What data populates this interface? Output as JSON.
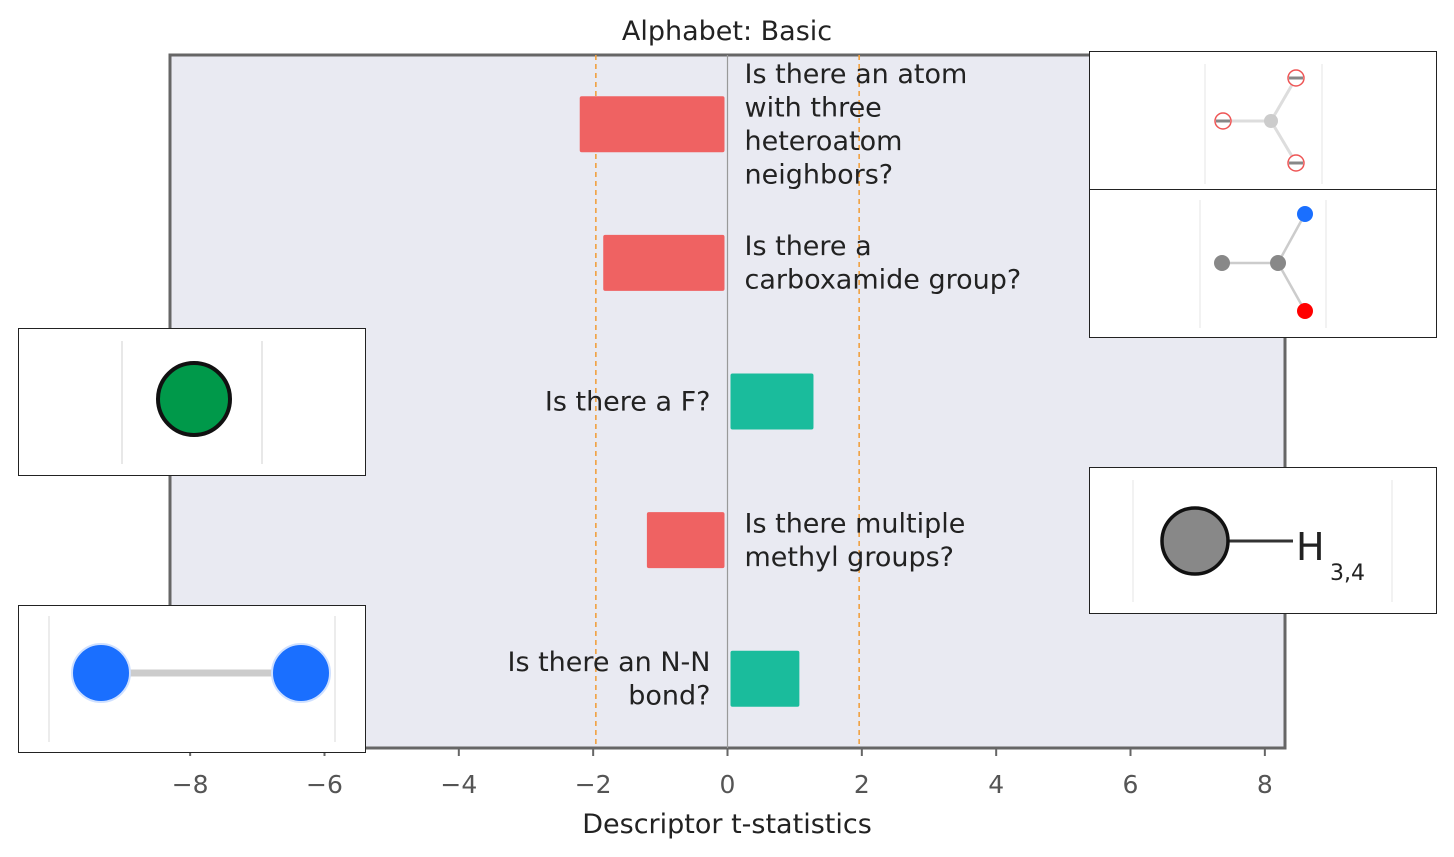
{
  "chart_data": {
    "type": "bar",
    "orientation": "horizontal",
    "title": "Alphabet: Basic",
    "xlabel": "Descriptor t-statistics",
    "ylabel": "",
    "xlim": [
      -8.3,
      8.3
    ],
    "xticks": [
      -8,
      -6,
      -4,
      -2,
      0,
      2,
      4,
      6,
      8
    ],
    "xtick_labels": [
      "−8",
      "−6",
      "−4",
      "−2",
      "0",
      "2",
      "4",
      "6",
      "8"
    ],
    "threshold_lines": [
      -1.96,
      1.96
    ],
    "grid": false,
    "bars": [
      {
        "label_lines": [
          "Is there an atom",
          "with three",
          "heteroatom",
          "neighbors?"
        ],
        "value": -2.2,
        "color": "#ef6262"
      },
      {
        "label_lines": [
          "Is there a",
          "carboxamide group?"
        ],
        "value": -1.85,
        "color": "#ef6262"
      },
      {
        "label_lines": [
          "Is there a F?"
        ],
        "value": 1.28,
        "color": "#1abc9c"
      },
      {
        "label_lines": [
          "Is there multiple",
          "methyl groups?"
        ],
        "value": -1.2,
        "color": "#ef6262"
      },
      {
        "label_lines": [
          "Is there an N-N",
          "bond?"
        ],
        "value": 1.07,
        "color": "#1abc9c"
      }
    ],
    "colors": {
      "negative": "#ef6262",
      "positive": "#1abc9c",
      "plot_background": "#e9eaf2",
      "threshold": "#f0a040"
    }
  },
  "insets": {
    "atom_h_label": "H",
    "atom_h_subscript": "3,4",
    "colors": {
      "fluorine": "#00994a",
      "nitrogen": "#1a6fff",
      "oxygen": "#ff0000",
      "carbon": "#888888",
      "wildcard": "#cccccc"
    }
  }
}
